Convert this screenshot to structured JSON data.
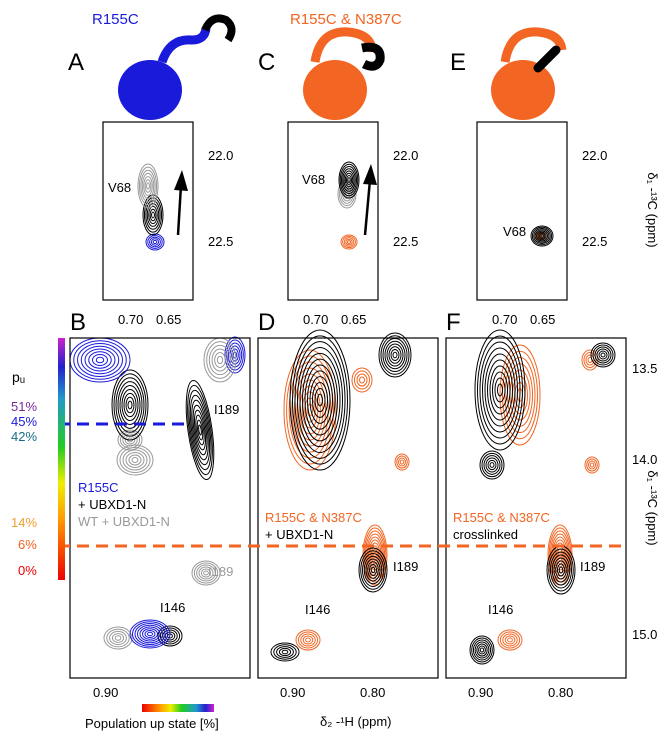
{
  "top_panels": [
    {
      "label": "A",
      "construct": "R155C",
      "peak": "V68"
    },
    {
      "label": "C",
      "construct": "R155C & N387C",
      "peak": "V68"
    },
    {
      "label": "E",
      "peak": "V68"
    }
  ],
  "top_x_ticks": [
    "0.70",
    "0.65"
  ],
  "top_y_ticks": [
    "22.0",
    "22.5"
  ],
  "y_axis_label": "δ₁ -¹³C (ppm)",
  "bottom_panels": [
    {
      "label": "B",
      "legend": [
        "R155C",
        "+ UBXD1-N",
        "WT + UBXD1-N"
      ],
      "peaks": [
        "I189",
        "I189",
        "I146"
      ]
    },
    {
      "label": "D",
      "legend": [
        "R155C & N387C",
        "+ UBXD1-N"
      ],
      "peaks": [
        "I189",
        "I146"
      ]
    },
    {
      "label": "F",
      "legend": [
        "R155C & N387C",
        "crosslinked"
      ],
      "peaks": [
        "I189",
        "I146"
      ]
    }
  ],
  "bottom_y_ticks": [
    "13.5",
    "14.0",
    "15.0"
  ],
  "bottom_x_ticks": {
    "B": [
      "0.90"
    ],
    "D": [
      "0.90",
      "0.80"
    ],
    "F": [
      "0.90",
      "0.80"
    ]
  },
  "x_axis_label": "δ₂ -¹H (ppm)",
  "colorbar": {
    "title": "pᵤ",
    "ticks": [
      "51%",
      "45%",
      "42%",
      "14%",
      "6%",
      "0%"
    ],
    "label": "Population up state [%]"
  }
}
